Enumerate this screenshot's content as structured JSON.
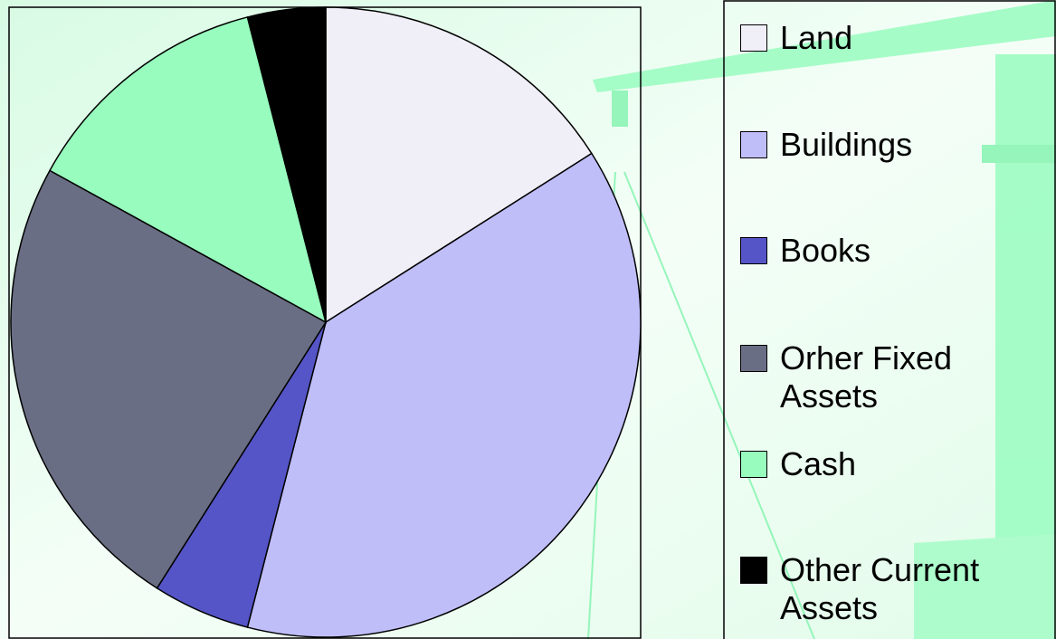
{
  "chart_data": {
    "type": "pie",
    "categories": [
      "Land",
      "Buildings",
      "Books",
      "Orher Fixed Assets",
      "Cash",
      "Other Current Assets"
    ],
    "values": [
      16,
      38,
      5,
      24,
      13,
      4
    ],
    "colors": [
      "#f0eef6",
      "#c0bef9",
      "#5555c8",
      "#6a6e84",
      "#98fcbe",
      "#000000"
    ],
    "legend": "right"
  }
}
